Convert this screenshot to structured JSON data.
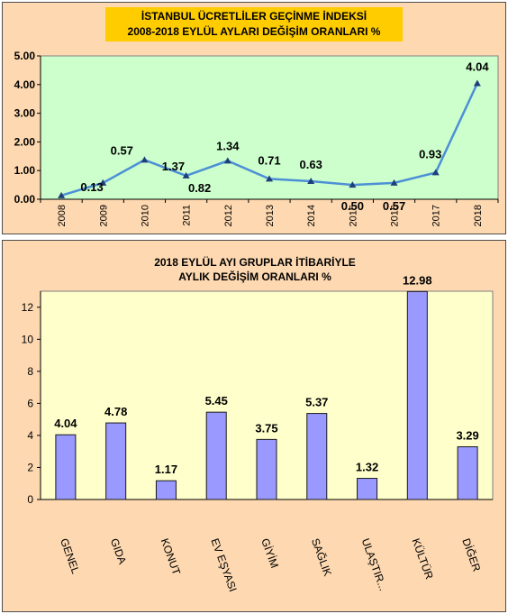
{
  "chart_data": [
    {
      "type": "line",
      "title": "İSTANBUL ÜCRETLİLER GEÇİNME İNDEKSİ",
      "subtitle": "2008-2018 EYLÜL AYLARI DEĞİŞİM ORANLARI %",
      "x": [
        "2008",
        "2009",
        "2010",
        "2011",
        "2012",
        "2013",
        "2014",
        "2015",
        "2016",
        "2017",
        "2018"
      ],
      "values": [
        0.13,
        0.57,
        1.37,
        0.82,
        1.34,
        0.71,
        0.63,
        0.5,
        0.57,
        0.93,
        4.04
      ],
      "data_labels": [
        "0.13",
        "0.57",
        "1.37",
        "0.82",
        "1.34",
        "0.71",
        "0.63",
        "0.50",
        "0.57",
        "0.93",
        "4.04"
      ],
      "y_ticks": [
        "0.00",
        "1.00",
        "2.00",
        "3.00",
        "4.00",
        "5.00"
      ],
      "ylim": [
        0,
        5
      ],
      "grid": false,
      "colors": {
        "panel_bg": "#fdd8b0",
        "plot_bg": "#ccffcc",
        "title_bg": "#ffcc00",
        "line": "#4d8fd6",
        "marker": "#1f3f7a"
      }
    },
    {
      "type": "bar",
      "title": "2018 EYLÜL AYI GRUPLAR İTİBARİYLE",
      "subtitle": "AYLIK DEĞİŞİM ORANLARI %",
      "categories": [
        "GENEL",
        "GIDA",
        "KONUT",
        "EV EŞYASI",
        "GİYİM",
        "SAĞLIK",
        "ULAŞTIR...",
        "KÜLTÜR",
        "DİĞER"
      ],
      "values": [
        4.04,
        4.78,
        1.17,
        5.45,
        3.75,
        5.37,
        1.32,
        12.98,
        3.29
      ],
      "data_labels": [
        "4.04",
        "4.78",
        "1.17",
        "5.45",
        "3.75",
        "5.37",
        "1.32",
        "12.98",
        "3.29"
      ],
      "y_ticks": [
        "0",
        "2",
        "4",
        "6",
        "8",
        "10",
        "12"
      ],
      "ylim": [
        0,
        13
      ],
      "grid": false,
      "colors": {
        "panel_bg": "#fdd8b0",
        "plot_bg": "#ffffcc",
        "bar": "#9999ff",
        "bar_border": "#1a1a1a"
      }
    }
  ]
}
